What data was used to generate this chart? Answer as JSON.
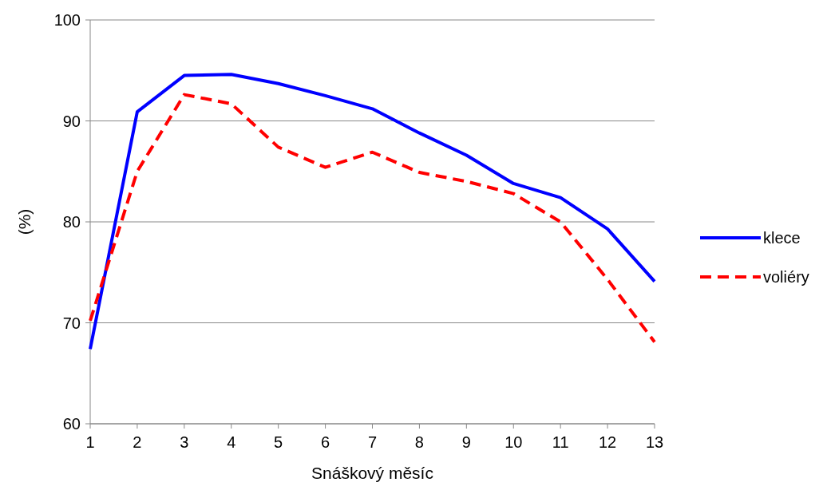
{
  "chart_data": {
    "type": "line",
    "xlabel": "Snáškový měsíc",
    "ylabel": "(%)",
    "x": [
      1,
      2,
      3,
      4,
      5,
      6,
      7,
      8,
      9,
      10,
      11,
      12,
      13
    ],
    "series": [
      {
        "name": "klece",
        "color": "#0000ff",
        "line_style": "solid",
        "values": [
          67.4,
          90.9,
          94.5,
          94.6,
          93.7,
          92.5,
          91.2,
          88.8,
          86.6,
          83.8,
          82.4,
          79.3,
          74.1
        ]
      },
      {
        "name": "voliéry",
        "color": "#ff0000",
        "line_style": "dashed",
        "values": [
          70.2,
          85.0,
          92.6,
          91.7,
          87.4,
          85.4,
          86.9,
          84.9,
          84.0,
          82.8,
          80.0,
          74.3,
          68.1
        ]
      }
    ],
    "xlim": [
      1,
      13
    ],
    "xticks": [
      1,
      2,
      3,
      4,
      5,
      6,
      7,
      8,
      9,
      10,
      11,
      12,
      13
    ],
    "ylim": [
      60,
      100
    ],
    "yticks": [
      60,
      70,
      80,
      90,
      100
    ],
    "grid": "y",
    "legend": "right"
  }
}
